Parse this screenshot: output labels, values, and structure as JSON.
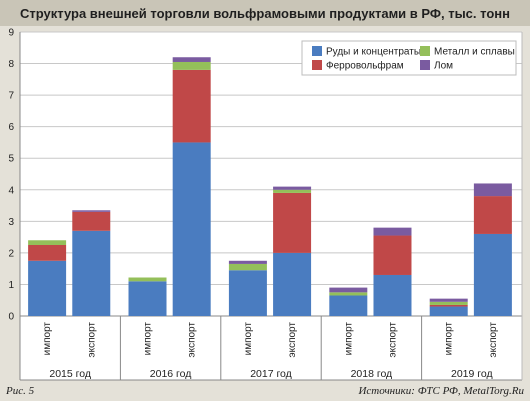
{
  "title": "Структура внешней торговли вольфрамовыми продуктами в РФ, тыс. тонн",
  "figure_label": "Рис. 5",
  "source_label": "Источники: ФТС РФ, MetalTorg.Ru",
  "colors": {
    "ore": "#4a7cc0",
    "ferro": "#c04848",
    "metal": "#94bf5a",
    "scrap": "#7a5ba0",
    "background": "#e4e1d8",
    "plot_bg": "#ffffff"
  },
  "chart_data": {
    "type": "bar",
    "stacked": true,
    "ylim": [
      0,
      9
    ],
    "yticks": [
      0,
      1,
      2,
      3,
      4,
      5,
      6,
      7,
      8,
      9
    ],
    "grid": true,
    "legend_position": "top-right",
    "groups": [
      "2015 год",
      "2016 год",
      "2017 год",
      "2018 год",
      "2019 год"
    ],
    "subcategories": [
      "импорт",
      "экспорт"
    ],
    "categories": [
      "импорт",
      "экспорт",
      "импорт",
      "экспорт",
      "импорт",
      "экспорт",
      "импорт",
      "экспорт",
      "импорт",
      "экспорт"
    ],
    "series": [
      {
        "name": "Руды и концентраты",
        "color_key": "ore",
        "values": [
          1.75,
          2.7,
          1.1,
          5.5,
          1.45,
          2.0,
          0.65,
          1.3,
          0.3,
          2.6
        ]
      },
      {
        "name": "Ферровольфрам",
        "color_key": "ferro",
        "values": [
          0.5,
          0.6,
          0.0,
          2.3,
          0.0,
          1.9,
          0.0,
          1.25,
          0.05,
          1.2
        ]
      },
      {
        "name": "Металл и сплавы",
        "color_key": "metal",
        "values": [
          0.15,
          0.0,
          0.12,
          0.25,
          0.2,
          0.1,
          0.1,
          0.0,
          0.1,
          0.0
        ]
      },
      {
        "name": "Лом",
        "color_key": "scrap",
        "values": [
          0.0,
          0.05,
          0.0,
          0.15,
          0.1,
          0.1,
          0.15,
          0.25,
          0.1,
          0.4
        ]
      }
    ],
    "legend_order": [
      0,
      2,
      1,
      3
    ]
  }
}
